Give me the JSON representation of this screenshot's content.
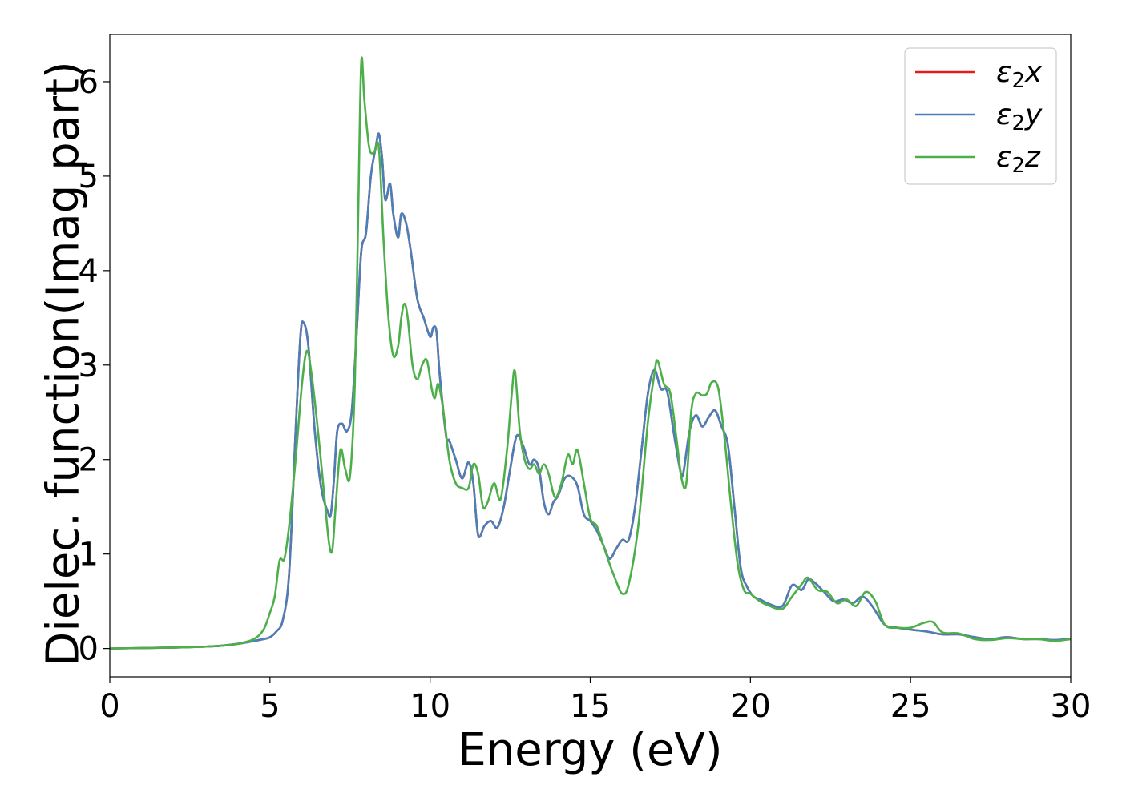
{
  "chart_data": {
    "type": "line",
    "title": "",
    "xlabel": "Energy (eV)",
    "ylabel": "Dielec. function(Imag part)",
    "xlim": [
      0,
      30
    ],
    "ylim": [
      -0.3,
      6.5
    ],
    "xticks": [
      0,
      5,
      10,
      15,
      20,
      25,
      30
    ],
    "yticks": [
      0,
      1,
      2,
      3,
      4,
      5,
      6
    ],
    "grid": false,
    "legend_position": "top-right",
    "series": [
      {
        "name": "ε₂x",
        "legend_label": {
          "base": "ε",
          "sub": "2",
          "axis": "x"
        },
        "color": "#e41a1c",
        "x": [
          0,
          1,
          2,
          3,
          3.5,
          4,
          4.5,
          4.8,
          5,
          5.2,
          5.4,
          5.6,
          5.8,
          5.95,
          6.05,
          6.2,
          6.4,
          6.6,
          6.8,
          6.9,
          7.0,
          7.1,
          7.25,
          7.4,
          7.55,
          7.7,
          7.85,
          8.0,
          8.15,
          8.3,
          8.4,
          8.5,
          8.6,
          8.75,
          8.85,
          9.0,
          9.1,
          9.25,
          9.4,
          9.6,
          9.8,
          10.0,
          10.1,
          10.2,
          10.3,
          10.5,
          10.6,
          10.8,
          11.0,
          11.2,
          11.35,
          11.5,
          11.7,
          11.9,
          12.1,
          12.3,
          12.5,
          12.7,
          12.9,
          13.1,
          13.25,
          13.4,
          13.55,
          13.7,
          13.85,
          14.0,
          14.2,
          14.4,
          14.6,
          14.8,
          15.0,
          15.2,
          15.4,
          15.6,
          15.8,
          16.0,
          16.2,
          16.4,
          16.6,
          16.8,
          17.0,
          17.2,
          17.4,
          17.6,
          17.8,
          17.9,
          18.1,
          18.3,
          18.5,
          18.7,
          18.9,
          19.1,
          19.3,
          19.5,
          19.7,
          19.9,
          20.1,
          20.3,
          20.6,
          21.0,
          21.3,
          21.6,
          21.8,
          22.0,
          22.3,
          22.6,
          22.9,
          23.2,
          23.5,
          23.8,
          24.2,
          24.6,
          25.0,
          25.5,
          26.0,
          26.5,
          27.0,
          27.5,
          28.0,
          28.5,
          29.0,
          29.5,
          30.0
        ],
        "y": [
          0,
          0.005,
          0.01,
          0.02,
          0.03,
          0.05,
          0.08,
          0.1,
          0.12,
          0.18,
          0.3,
          0.8,
          2.3,
          3.3,
          3.45,
          3.2,
          2.3,
          1.7,
          1.45,
          1.42,
          1.8,
          2.3,
          2.38,
          2.3,
          2.5,
          3.3,
          4.2,
          4.4,
          5.0,
          5.3,
          5.45,
          5.2,
          4.75,
          4.92,
          4.6,
          4.35,
          4.6,
          4.5,
          4.2,
          3.7,
          3.5,
          3.3,
          3.4,
          3.35,
          2.9,
          2.25,
          2.2,
          2.0,
          1.8,
          1.97,
          1.75,
          1.2,
          1.3,
          1.35,
          1.28,
          1.5,
          1.9,
          2.25,
          2.15,
          1.95,
          2.0,
          1.9,
          1.55,
          1.42,
          1.55,
          1.62,
          1.8,
          1.82,
          1.72,
          1.42,
          1.35,
          1.25,
          1.1,
          0.95,
          1.05,
          1.15,
          1.15,
          1.5,
          2.1,
          2.7,
          2.95,
          2.75,
          2.72,
          2.3,
          1.9,
          1.85,
          2.3,
          2.47,
          2.35,
          2.45,
          2.52,
          2.35,
          2.15,
          1.5,
          0.85,
          0.65,
          0.55,
          0.52,
          0.47,
          0.45,
          0.67,
          0.62,
          0.73,
          0.7,
          0.6,
          0.5,
          0.52,
          0.48,
          0.55,
          0.45,
          0.25,
          0.22,
          0.2,
          0.18,
          0.15,
          0.15,
          0.12,
          0.1,
          0.12,
          0.1,
          0.1,
          0.09,
          0.1
        ]
      },
      {
        "name": "ε₂y",
        "legend_label": {
          "base": "ε",
          "sub": "2",
          "axis": "y"
        },
        "color": "#4a7fb8",
        "x": [
          0,
          1,
          2,
          3,
          3.5,
          4,
          4.5,
          4.8,
          5,
          5.2,
          5.4,
          5.6,
          5.8,
          5.95,
          6.05,
          6.2,
          6.4,
          6.6,
          6.8,
          6.9,
          7.0,
          7.1,
          7.25,
          7.4,
          7.55,
          7.7,
          7.85,
          8.0,
          8.15,
          8.3,
          8.4,
          8.5,
          8.6,
          8.75,
          8.85,
          9.0,
          9.1,
          9.25,
          9.4,
          9.6,
          9.8,
          10.0,
          10.1,
          10.2,
          10.3,
          10.5,
          10.6,
          10.8,
          11.0,
          11.2,
          11.35,
          11.5,
          11.7,
          11.9,
          12.1,
          12.3,
          12.5,
          12.7,
          12.9,
          13.1,
          13.25,
          13.4,
          13.55,
          13.7,
          13.85,
          14.0,
          14.2,
          14.4,
          14.6,
          14.8,
          15.0,
          15.2,
          15.4,
          15.6,
          15.8,
          16.0,
          16.2,
          16.4,
          16.6,
          16.8,
          17.0,
          17.2,
          17.4,
          17.6,
          17.8,
          17.9,
          18.1,
          18.3,
          18.5,
          18.7,
          18.9,
          19.1,
          19.3,
          19.5,
          19.7,
          19.9,
          20.1,
          20.3,
          20.6,
          21.0,
          21.3,
          21.6,
          21.8,
          22.0,
          22.3,
          22.6,
          22.9,
          23.2,
          23.5,
          23.8,
          24.2,
          24.6,
          25.0,
          25.5,
          26.0,
          26.5,
          27.0,
          27.5,
          28.0,
          28.5,
          29.0,
          29.5,
          30.0
        ],
        "y": [
          0,
          0.005,
          0.01,
          0.02,
          0.03,
          0.05,
          0.08,
          0.1,
          0.12,
          0.18,
          0.3,
          0.8,
          2.3,
          3.3,
          3.45,
          3.2,
          2.3,
          1.7,
          1.45,
          1.42,
          1.8,
          2.3,
          2.38,
          2.3,
          2.5,
          3.3,
          4.2,
          4.4,
          5.0,
          5.3,
          5.45,
          5.2,
          4.75,
          4.92,
          4.6,
          4.35,
          4.6,
          4.5,
          4.2,
          3.7,
          3.5,
          3.3,
          3.4,
          3.35,
          2.9,
          2.25,
          2.2,
          2.0,
          1.8,
          1.97,
          1.75,
          1.2,
          1.3,
          1.35,
          1.28,
          1.5,
          1.9,
          2.25,
          2.15,
          1.95,
          2.0,
          1.9,
          1.55,
          1.42,
          1.55,
          1.62,
          1.8,
          1.82,
          1.72,
          1.42,
          1.35,
          1.25,
          1.1,
          0.95,
          1.05,
          1.15,
          1.15,
          1.5,
          2.1,
          2.7,
          2.95,
          2.75,
          2.72,
          2.3,
          1.9,
          1.85,
          2.3,
          2.47,
          2.35,
          2.45,
          2.52,
          2.35,
          2.15,
          1.5,
          0.85,
          0.65,
          0.55,
          0.52,
          0.47,
          0.45,
          0.67,
          0.62,
          0.73,
          0.7,
          0.6,
          0.5,
          0.52,
          0.48,
          0.55,
          0.45,
          0.25,
          0.22,
          0.2,
          0.18,
          0.15,
          0.15,
          0.12,
          0.1,
          0.12,
          0.1,
          0.1,
          0.09,
          0.1
        ]
      },
      {
        "name": "ε₂z",
        "legend_label": {
          "base": "ε",
          "sub": "2",
          "axis": "z"
        },
        "color": "#4daf4a",
        "x": [
          0,
          1,
          2,
          3,
          3.5,
          4,
          4.5,
          4.8,
          5.0,
          5.15,
          5.3,
          5.45,
          5.6,
          5.8,
          6.0,
          6.15,
          6.3,
          6.5,
          6.7,
          6.85,
          6.95,
          7.05,
          7.2,
          7.35,
          7.5,
          7.65,
          7.75,
          7.85,
          7.95,
          8.1,
          8.25,
          8.4,
          8.55,
          8.7,
          8.85,
          9.0,
          9.1,
          9.2,
          9.3,
          9.45,
          9.6,
          9.75,
          9.9,
          10.05,
          10.15,
          10.25,
          10.4,
          10.6,
          10.8,
          11.0,
          11.2,
          11.35,
          11.5,
          11.65,
          11.8,
          12.0,
          12.2,
          12.4,
          12.55,
          12.65,
          12.8,
          12.95,
          13.1,
          13.25,
          13.4,
          13.55,
          13.7,
          13.9,
          14.1,
          14.3,
          14.45,
          14.6,
          14.8,
          15.0,
          15.2,
          15.4,
          15.6,
          15.8,
          16.0,
          16.2,
          16.5,
          16.8,
          17.0,
          17.1,
          17.3,
          17.5,
          17.7,
          17.85,
          18.0,
          18.15,
          18.3,
          18.5,
          18.65,
          18.8,
          19.0,
          19.2,
          19.4,
          19.6,
          19.8,
          20.0,
          20.3,
          20.6,
          21.0,
          21.3,
          21.6,
          21.8,
          22.1,
          22.4,
          22.7,
          23.0,
          23.3,
          23.6,
          23.9,
          24.2,
          24.6,
          25.0,
          25.4,
          25.7,
          26.0,
          26.5,
          27.0,
          27.5,
          28.0,
          28.5,
          29.0,
          29.5,
          30.0
        ],
        "y": [
          0,
          0.005,
          0.01,
          0.02,
          0.03,
          0.05,
          0.1,
          0.2,
          0.38,
          0.55,
          0.93,
          0.95,
          1.3,
          2.0,
          2.8,
          3.15,
          2.9,
          2.3,
          1.6,
          1.1,
          1.05,
          1.5,
          2.1,
          1.9,
          1.83,
          2.8,
          4.5,
          6.2,
          5.8,
          5.3,
          5.25,
          5.3,
          4.3,
          3.5,
          3.1,
          3.2,
          3.5,
          3.65,
          3.5,
          3.0,
          2.85,
          3.0,
          3.05,
          2.75,
          2.65,
          2.8,
          2.55,
          2.0,
          1.75,
          1.7,
          1.7,
          1.95,
          1.85,
          1.5,
          1.55,
          1.75,
          1.58,
          2.1,
          2.7,
          2.93,
          2.3,
          2.0,
          1.9,
          1.95,
          1.85,
          1.95,
          1.85,
          1.6,
          1.75,
          2.05,
          1.95,
          2.1,
          1.75,
          1.38,
          1.3,
          1.1,
          0.9,
          0.72,
          0.58,
          0.68,
          1.3,
          2.4,
          2.9,
          3.05,
          2.8,
          2.7,
          2.2,
          1.8,
          1.75,
          2.5,
          2.7,
          2.68,
          2.7,
          2.82,
          2.75,
          2.2,
          1.5,
          0.9,
          0.62,
          0.58,
          0.5,
          0.45,
          0.42,
          0.55,
          0.68,
          0.75,
          0.62,
          0.6,
          0.48,
          0.52,
          0.45,
          0.6,
          0.5,
          0.25,
          0.22,
          0.22,
          0.27,
          0.28,
          0.17,
          0.16,
          0.1,
          0.09,
          0.11,
          0.1,
          0.1,
          0.08,
          0.1
        ]
      }
    ]
  }
}
